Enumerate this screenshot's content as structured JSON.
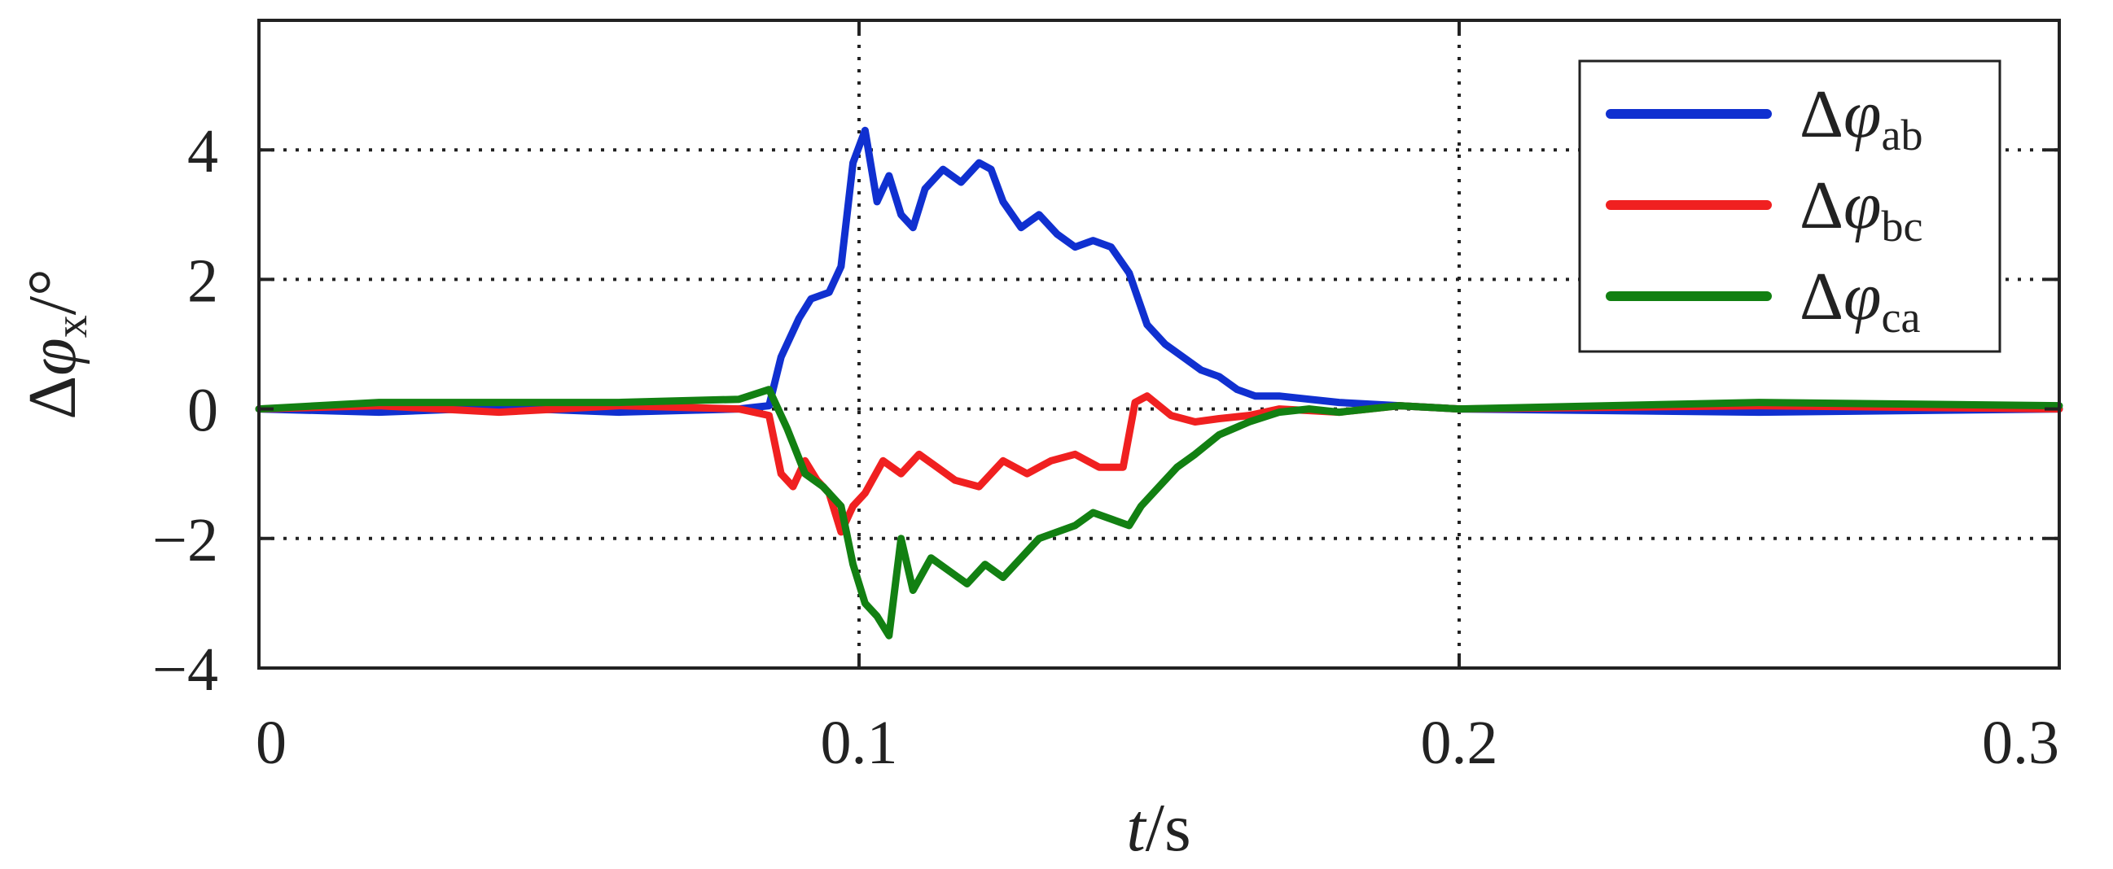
{
  "chart_data": {
    "type": "line",
    "title": "",
    "xlabel_var": "t",
    "xlabel_unit": "/s",
    "ylabel_prefix": "Δ",
    "ylabel_var": "φ",
    "ylabel_sub": "x",
    "ylabel_unit": "/°",
    "xlim": [
      0,
      0.3
    ],
    "ylim": [
      -4,
      6
    ],
    "xticks": [
      0,
      0.1,
      0.2,
      0.3
    ],
    "xtick_labels": [
      "0",
      "0.1",
      "0.2",
      "0.3"
    ],
    "yticks": [
      -4,
      -2,
      0,
      2,
      4
    ],
    "ytick_labels": [
      "−4",
      "−2",
      "0",
      "2",
      "4"
    ],
    "grid": true,
    "legend_position": "top-right",
    "series": [
      {
        "name_prefix": "Δ",
        "name_var": "φ",
        "name_sub": "ab",
        "color": "#1030d0",
        "x": [
          0,
          0.02,
          0.04,
          0.06,
          0.08,
          0.085,
          0.087,
          0.09,
          0.092,
          0.095,
          0.097,
          0.099,
          0.101,
          0.103,
          0.105,
          0.107,
          0.109,
          0.111,
          0.114,
          0.117,
          0.12,
          0.122,
          0.124,
          0.127,
          0.13,
          0.133,
          0.136,
          0.139,
          0.142,
          0.145,
          0.148,
          0.151,
          0.154,
          0.157,
          0.16,
          0.163,
          0.166,
          0.17,
          0.175,
          0.18,
          0.19,
          0.2,
          0.25,
          0.3
        ],
        "y": [
          0,
          -0.05,
          0.02,
          -0.05,
          0,
          0.05,
          0.8,
          1.4,
          1.7,
          1.8,
          2.2,
          3.8,
          4.3,
          3.2,
          3.6,
          3.0,
          2.8,
          3.4,
          3.7,
          3.5,
          3.8,
          3.7,
          3.2,
          2.8,
          3.0,
          2.7,
          2.5,
          2.6,
          2.5,
          2.1,
          1.3,
          1.0,
          0.8,
          0.6,
          0.5,
          0.3,
          0.2,
          0.2,
          0.15,
          0.1,
          0.05,
          0,
          -0.05,
          0
        ]
      },
      {
        "name_prefix": "Δ",
        "name_var": "φ",
        "name_sub": "bc",
        "color": "#f02020",
        "x": [
          0,
          0.02,
          0.04,
          0.06,
          0.08,
          0.085,
          0.087,
          0.089,
          0.091,
          0.093,
          0.095,
          0.097,
          0.099,
          0.101,
          0.104,
          0.107,
          0.11,
          0.113,
          0.116,
          0.12,
          0.124,
          0.128,
          0.132,
          0.136,
          0.14,
          0.144,
          0.146,
          0.148,
          0.152,
          0.156,
          0.16,
          0.165,
          0.17,
          0.18,
          0.19,
          0.2,
          0.25,
          0.3
        ],
        "y": [
          0,
          0.05,
          -0.05,
          0.05,
          0,
          -0.1,
          -1.0,
          -1.2,
          -0.8,
          -1.1,
          -1.3,
          -1.9,
          -1.5,
          -1.3,
          -0.8,
          -1.0,
          -0.7,
          -0.9,
          -1.1,
          -1.2,
          -0.8,
          -1.0,
          -0.8,
          -0.7,
          -0.9,
          -0.9,
          0.1,
          0.2,
          -0.1,
          -0.2,
          -0.15,
          -0.1,
          0.0,
          -0.05,
          0.05,
          0,
          0.05,
          0
        ]
      },
      {
        "name_prefix": "Δ",
        "name_var": "φ",
        "name_sub": "ca",
        "color": "#128012",
        "x": [
          0,
          0.02,
          0.04,
          0.06,
          0.08,
          0.085,
          0.088,
          0.091,
          0.094,
          0.097,
          0.099,
          0.101,
          0.103,
          0.105,
          0.107,
          0.109,
          0.112,
          0.115,
          0.118,
          0.121,
          0.124,
          0.127,
          0.13,
          0.133,
          0.136,
          0.139,
          0.142,
          0.145,
          0.147,
          0.15,
          0.153,
          0.156,
          0.16,
          0.165,
          0.17,
          0.175,
          0.18,
          0.19,
          0.2,
          0.25,
          0.3
        ],
        "y": [
          0,
          0.1,
          0.1,
          0.1,
          0.15,
          0.3,
          -0.3,
          -1.0,
          -1.2,
          -1.5,
          -2.4,
          -3.0,
          -3.2,
          -3.5,
          -2.0,
          -2.8,
          -2.3,
          -2.5,
          -2.7,
          -2.4,
          -2.6,
          -2.3,
          -2.0,
          -1.9,
          -1.8,
          -1.6,
          -1.7,
          -1.8,
          -1.5,
          -1.2,
          -0.9,
          -0.7,
          -0.4,
          -0.2,
          -0.05,
          0.0,
          -0.05,
          0.05,
          0,
          0.1,
          0.05
        ]
      }
    ]
  }
}
